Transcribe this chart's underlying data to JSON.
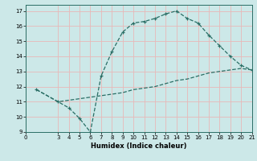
{
  "xlabel": "Humidex (Indice chaleur)",
  "background_color": "#cce8e8",
  "grid_color": "#e8b8b8",
  "line_color": "#2a6e65",
  "line1_x": [
    1,
    3,
    4,
    5,
    6,
    7,
    8,
    9,
    10,
    11,
    12,
    13,
    14,
    15,
    16,
    17,
    18,
    19,
    20,
    21
  ],
  "line1_y": [
    11.8,
    11.0,
    10.6,
    9.9,
    9.0,
    12.7,
    14.3,
    15.6,
    16.2,
    16.3,
    16.5,
    16.8,
    17.0,
    16.5,
    16.2,
    15.4,
    14.7,
    14.0,
    13.4,
    13.1
  ],
  "line2_x": [
    1,
    3,
    4,
    5,
    6,
    7,
    8,
    9,
    10,
    11,
    12,
    13,
    14,
    15,
    16,
    17,
    18,
    19,
    20,
    21
  ],
  "line2_y": [
    11.8,
    11.0,
    11.1,
    11.2,
    11.3,
    11.4,
    11.5,
    11.6,
    11.8,
    11.9,
    12.0,
    12.2,
    12.4,
    12.5,
    12.7,
    12.9,
    13.0,
    13.1,
    13.2,
    13.1
  ],
  "xlim": [
    0,
    21
  ],
  "ylim": [
    9,
    17.4
  ],
  "xticks": [
    0,
    3,
    4,
    5,
    6,
    7,
    8,
    9,
    10,
    11,
    12,
    13,
    14,
    15,
    16,
    17,
    18,
    19,
    20,
    21
  ],
  "yticks": [
    9,
    10,
    11,
    12,
    13,
    14,
    15,
    16,
    17
  ],
  "tick_fontsize": 5.0,
  "label_fontsize": 6.0
}
